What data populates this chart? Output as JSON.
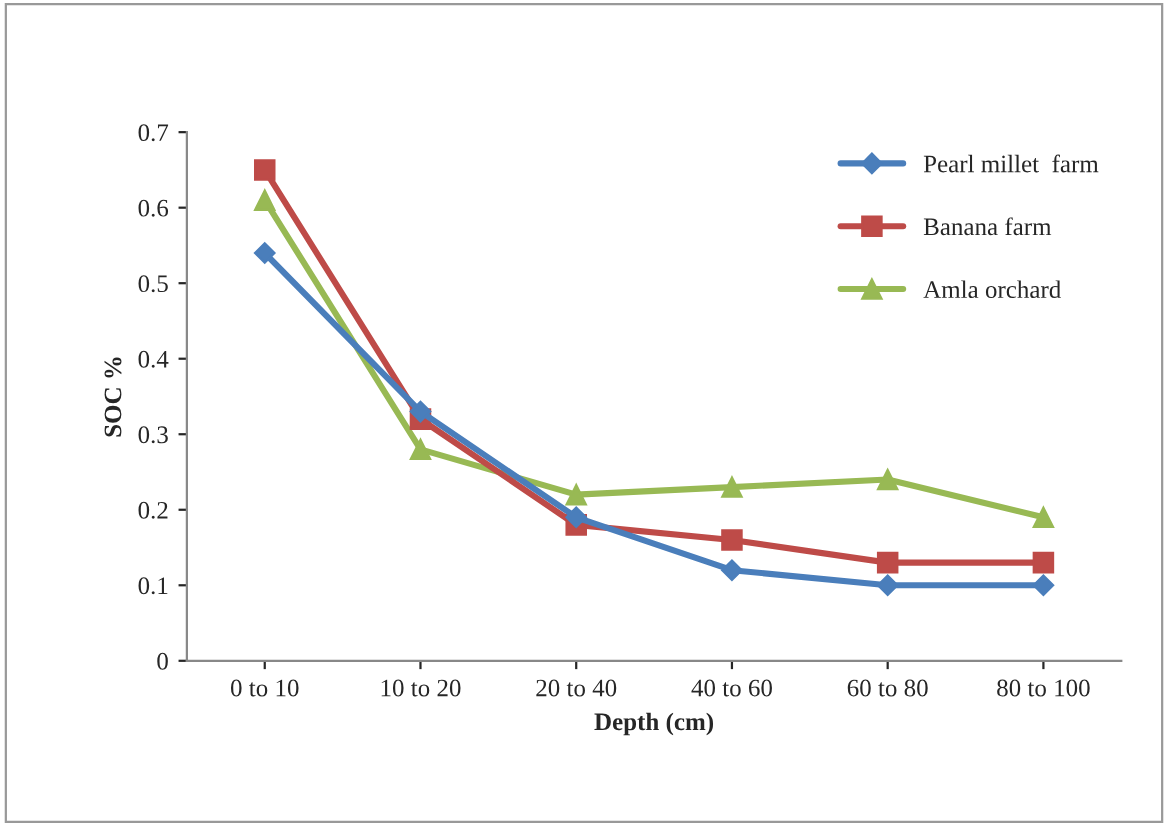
{
  "chart_data": {
    "type": "line",
    "xlabel": "Depth (cm)",
    "ylabel": "SOC %",
    "categories": [
      "0 to 10",
      "10 to 20",
      "20 to 40",
      "40 to 60",
      "60 to 80",
      "80 to 100"
    ],
    "series": [
      {
        "name": "Pearl millet  farm",
        "color": "#4a7ebb",
        "marker": "diamond",
        "values": [
          0.54,
          0.33,
          0.19,
          0.12,
          0.1,
          0.1
        ]
      },
      {
        "name": "Banana farm",
        "color": "#be4b48",
        "marker": "square",
        "values": [
          0.65,
          0.32,
          0.18,
          0.16,
          0.13,
          0.13
        ]
      },
      {
        "name": "Amla orchard",
        "color": "#98b954",
        "marker": "triangle",
        "values": [
          0.61,
          0.28,
          0.22,
          0.23,
          0.24,
          0.19
        ]
      }
    ],
    "ylim": [
      0,
      0.7
    ],
    "yticks": [
      0,
      0.1,
      0.2,
      0.3,
      0.4,
      0.5,
      0.6,
      0.7
    ],
    "grid": false,
    "legend": "top right",
    "line_style": "solid"
  }
}
